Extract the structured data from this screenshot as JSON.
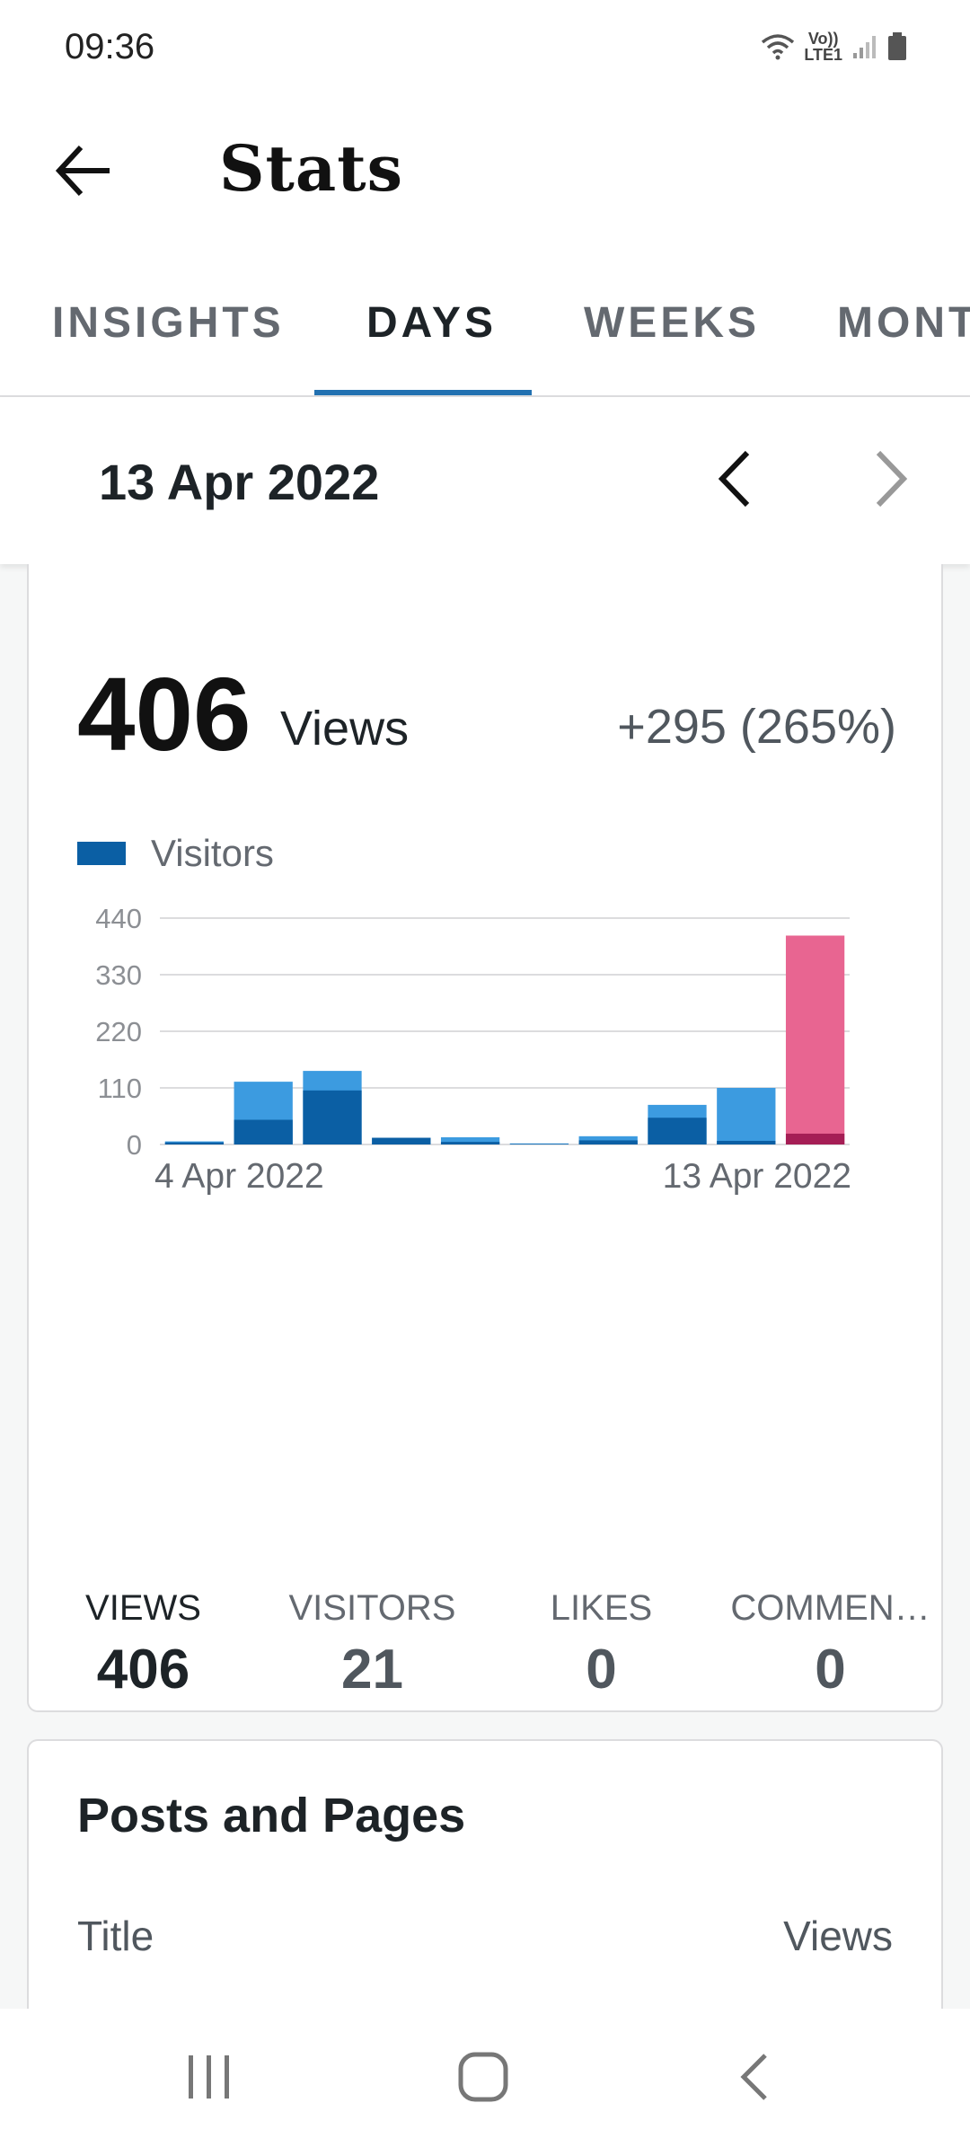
{
  "status_bar": {
    "time": "09:36",
    "network_label_top": "Vo))",
    "network_label_bottom": "LTE1"
  },
  "app_bar": {
    "title": "Stats"
  },
  "tabs": [
    {
      "label": "INSIGHTS",
      "active": false
    },
    {
      "label": "DAYS",
      "active": true
    },
    {
      "label": "WEEKS",
      "active": false
    },
    {
      "label": "MONT",
      "active": false
    }
  ],
  "date_selector": {
    "date": "13 Apr 2022"
  },
  "overview": {
    "total": "406",
    "total_label": "Views",
    "change": "+295 (265%)",
    "legend_label": "Visitors"
  },
  "chart_data": {
    "type": "bar",
    "stacked": true,
    "ylim": [
      0,
      440
    ],
    "yticks": [
      "0",
      "110",
      "220",
      "330",
      "440"
    ],
    "x_tick_labels": [
      "4 Apr 2022",
      "13 Apr 2022"
    ],
    "categories": [
      "4 Apr 2022",
      "5 Apr 2022",
      "6 Apr 2022",
      "7 Apr 2022",
      "8 Apr 2022",
      "9 Apr 2022",
      "10 Apr 2022",
      "11 Apr 2022",
      "12 Apr 2022",
      "13 Apr 2022"
    ],
    "series": [
      {
        "name": "Visitors",
        "values": [
          4,
          48,
          105,
          13,
          5,
          1,
          8,
          52,
          7,
          21
        ]
      },
      {
        "name": "Views",
        "values": [
          6,
          122,
          143,
          13,
          14,
          2,
          16,
          77,
          110,
          406
        ]
      }
    ],
    "colors": {
      "visitors": "#0b5fa4",
      "views": "#3c9be0",
      "selected_visitors": "#a51e55",
      "selected_views": "#e86591"
    },
    "selected_index": 9,
    "grid": true
  },
  "summary_tabs": [
    {
      "label": "VIEWS",
      "value": "406",
      "active": true
    },
    {
      "label": "VISITORS",
      "value": "21",
      "active": false
    },
    {
      "label": "LIKES",
      "value": "0",
      "active": false
    },
    {
      "label": "COMMEN…",
      "value": "0",
      "active": false
    }
  ],
  "posts_card": {
    "title": "Posts and Pages",
    "column_title": "Title",
    "column_views": "Views"
  },
  "icons": {
    "back": "arrow-left-icon",
    "prev": "chevron-left-icon",
    "next": "chevron-right-icon"
  }
}
